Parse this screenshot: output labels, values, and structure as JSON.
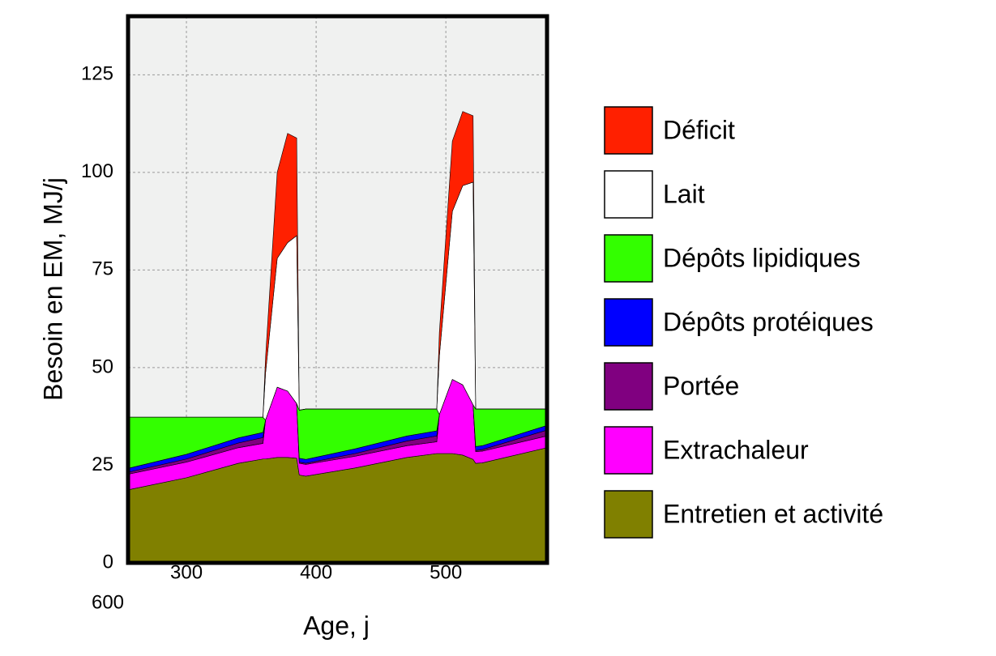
{
  "chart_data": {
    "type": "stacked_area",
    "xlabel": "Age, j",
    "ylabel": "Besoin en EM, MJ/j",
    "annotations": [
      "600"
    ],
    "x": [
      255,
      300,
      340,
      359,
      361,
      370,
      378,
      385,
      387,
      392,
      430,
      470,
      493,
      495,
      505,
      513,
      521,
      523,
      528,
      578
    ],
    "series": [
      {
        "name": "Entretien et activité",
        "color": "#808000",
        "values": [
          18.7,
          21.8,
          25.5,
          26.6,
          26.6,
          27,
          27,
          26.8,
          22.5,
          22.2,
          24.3,
          27,
          28,
          28,
          28,
          27.6,
          26.5,
          25.5,
          25.6,
          29.5
        ]
      },
      {
        "name": "Extrachaleur",
        "color": "#ff00ff",
        "values": [
          4,
          4,
          4,
          4,
          10,
          18,
          17,
          14,
          3,
          3,
          3,
          3,
          3,
          10,
          19,
          18,
          14,
          3,
          3,
          3
        ]
      },
      {
        "name": "Portée",
        "color": "#800080",
        "values": [
          0.5,
          0.8,
          1.2,
          1.5,
          0,
          0,
          0,
          0,
          0.3,
          0.3,
          0.7,
          1.2,
          1.5,
          0,
          0,
          0,
          0,
          0.3,
          0.4,
          1.5
        ]
      },
      {
        "name": "Dépôts protéiques",
        "color": "#0000ff",
        "values": [
          1,
          1.2,
          1.3,
          1.3,
          0,
          0,
          0,
          0,
          1,
          1,
          1.2,
          1.3,
          1.3,
          0,
          0,
          0,
          0,
          1,
          1,
          1.2
        ]
      },
      {
        "name": "Dépôts lipidiques",
        "color": "#33ff00",
        "values": [
          13.1,
          9.5,
          5.3,
          3.9,
          0,
          0,
          0,
          0,
          12.3,
          12.9,
          10.2,
          6.9,
          5.6,
          0,
          0,
          0,
          0,
          9.6,
          9.4,
          4.2
        ]
      },
      {
        "name": "Lait",
        "color": "#ffffff",
        "values": [
          0,
          0,
          0,
          0,
          12,
          33,
          38,
          43,
          0,
          0,
          0,
          0,
          0,
          15,
          43,
          51,
          57,
          0,
          0,
          0
        ]
      },
      {
        "name": "Déficit",
        "color": "#ff2000",
        "values": [
          0,
          0,
          0,
          0,
          4,
          22,
          28,
          25,
          0,
          0,
          0,
          0,
          0,
          6,
          18,
          19,
          17,
          0,
          0,
          0
        ]
      }
    ],
    "xlim": [
      255,
      578
    ],
    "ylim": [
      0,
      140
    ],
    "xticks": [
      300,
      400,
      500
    ],
    "yticks": [
      0,
      25,
      50,
      75,
      100,
      125
    ],
    "grid": true,
    "legend": "right"
  }
}
